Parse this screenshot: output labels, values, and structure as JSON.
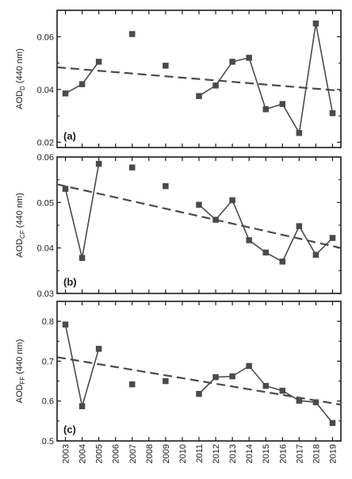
{
  "chart_data": [
    {
      "type": "line",
      "panel_label": "(a)",
      "ylabel_main": "AOD",
      "ylabel_sub": "D",
      "ylabel_unit": " (440 nm)",
      "ylim": [
        0.018,
        0.07
      ],
      "yticks": [
        0.02,
        0.04,
        0.06
      ],
      "ytick_labels": [
        "0.02",
        "0.04",
        "0.06"
      ],
      "xlim": [
        2002.5,
        2019.5
      ],
      "points": [
        {
          "x": 2003,
          "y": 0.0385
        },
        {
          "x": 2004,
          "y": 0.042
        },
        {
          "x": 2005,
          "y": 0.0505
        },
        {
          "x": 2007,
          "y": 0.061
        },
        {
          "x": 2009,
          "y": 0.049
        },
        {
          "x": 2011,
          "y": 0.0375
        },
        {
          "x": 2012,
          "y": 0.0415
        },
        {
          "x": 2013,
          "y": 0.0505
        },
        {
          "x": 2014,
          "y": 0.052
        },
        {
          "x": 2015,
          "y": 0.0325
        },
        {
          "x": 2016,
          "y": 0.0345
        },
        {
          "x": 2017,
          "y": 0.0235
        },
        {
          "x": 2018,
          "y": 0.065
        },
        {
          "x": 2019,
          "y": 0.031
        }
      ],
      "line_segments": [
        [
          2003,
          2004,
          2005
        ],
        [
          2011,
          2012,
          2013,
          2014,
          2015,
          2016,
          2017,
          2018,
          2019
        ]
      ],
      "trend": {
        "x": [
          2002.5,
          2019.5
        ],
        "y": [
          0.0484,
          0.0395
        ]
      }
    },
    {
      "type": "line",
      "panel_label": "(b)",
      "ylabel_main": "AOD",
      "ylabel_sub": "CF",
      "ylabel_unit": " (440 nm)",
      "ylim": [
        0.03,
        0.06
      ],
      "yticks": [
        0.03,
        0.04,
        0.05,
        0.06
      ],
      "ytick_labels": [
        "0.03",
        "0.04",
        "0.05",
        "0.06"
      ],
      "xlim": [
        2002.5,
        2019.5
      ],
      "points": [
        {
          "x": 2003,
          "y": 0.053
        },
        {
          "x": 2004,
          "y": 0.0378
        },
        {
          "x": 2005,
          "y": 0.0585
        },
        {
          "x": 2007,
          "y": 0.0577
        },
        {
          "x": 2009,
          "y": 0.0536
        },
        {
          "x": 2011,
          "y": 0.0495
        },
        {
          "x": 2012,
          "y": 0.0462
        },
        {
          "x": 2013,
          "y": 0.0505
        },
        {
          "x": 2014,
          "y": 0.0417
        },
        {
          "x": 2015,
          "y": 0.039
        },
        {
          "x": 2016,
          "y": 0.037
        },
        {
          "x": 2017,
          "y": 0.0448
        },
        {
          "x": 2018,
          "y": 0.0385
        },
        {
          "x": 2019,
          "y": 0.0422
        }
      ],
      "line_segments": [
        [
          2003,
          2004,
          2005
        ],
        [
          2011,
          2012,
          2013,
          2014,
          2015,
          2016,
          2017,
          2018,
          2019
        ]
      ],
      "trend": {
        "x": [
          2002.5,
          2019.5
        ],
        "y": [
          0.054,
          0.04
        ]
      }
    },
    {
      "type": "line",
      "panel_label": "(c)",
      "ylabel_main": "AOD",
      "ylabel_sub": "FF",
      "ylabel_unit": " (440 nm)",
      "ylim": [
        0.5,
        0.85
      ],
      "yticks": [
        0.5,
        0.6,
        0.7,
        0.8
      ],
      "ytick_labels": [
        "0.5",
        "0.6",
        "0.7",
        "0.8"
      ],
      "xlim": [
        2002.5,
        2019.5
      ],
      "points": [
        {
          "x": 2003,
          "y": 0.792
        },
        {
          "x": 2004,
          "y": 0.587
        },
        {
          "x": 2005,
          "y": 0.731
        },
        {
          "x": 2007,
          "y": 0.642
        },
        {
          "x": 2009,
          "y": 0.65
        },
        {
          "x": 2011,
          "y": 0.618
        },
        {
          "x": 2012,
          "y": 0.66
        },
        {
          "x": 2013,
          "y": 0.662
        },
        {
          "x": 2014,
          "y": 0.688
        },
        {
          "x": 2015,
          "y": 0.638
        },
        {
          "x": 2016,
          "y": 0.626
        },
        {
          "x": 2017,
          "y": 0.601
        },
        {
          "x": 2018,
          "y": 0.597
        },
        {
          "x": 2019,
          "y": 0.545
        }
      ],
      "line_segments": [
        [
          2003,
          2004,
          2005
        ],
        [
          2011,
          2012,
          2013,
          2014,
          2015,
          2016,
          2017,
          2018,
          2019
        ]
      ],
      "trend": {
        "x": [
          2002.5,
          2019.5
        ],
        "y": [
          0.71,
          0.591
        ]
      }
    }
  ],
  "x_tick_labels": [
    "2003",
    "2004",
    "2005",
    "2006",
    "2007",
    "2008",
    "2009",
    "2010",
    "2011",
    "2012",
    "2013",
    "2014",
    "2015",
    "2016",
    "2017",
    "2018",
    "2019"
  ],
  "colors": {
    "marker": "#4a4a4a",
    "line": "#4a4a4a",
    "trend": "#4a4a4a",
    "axis": "#1a1a1a"
  }
}
